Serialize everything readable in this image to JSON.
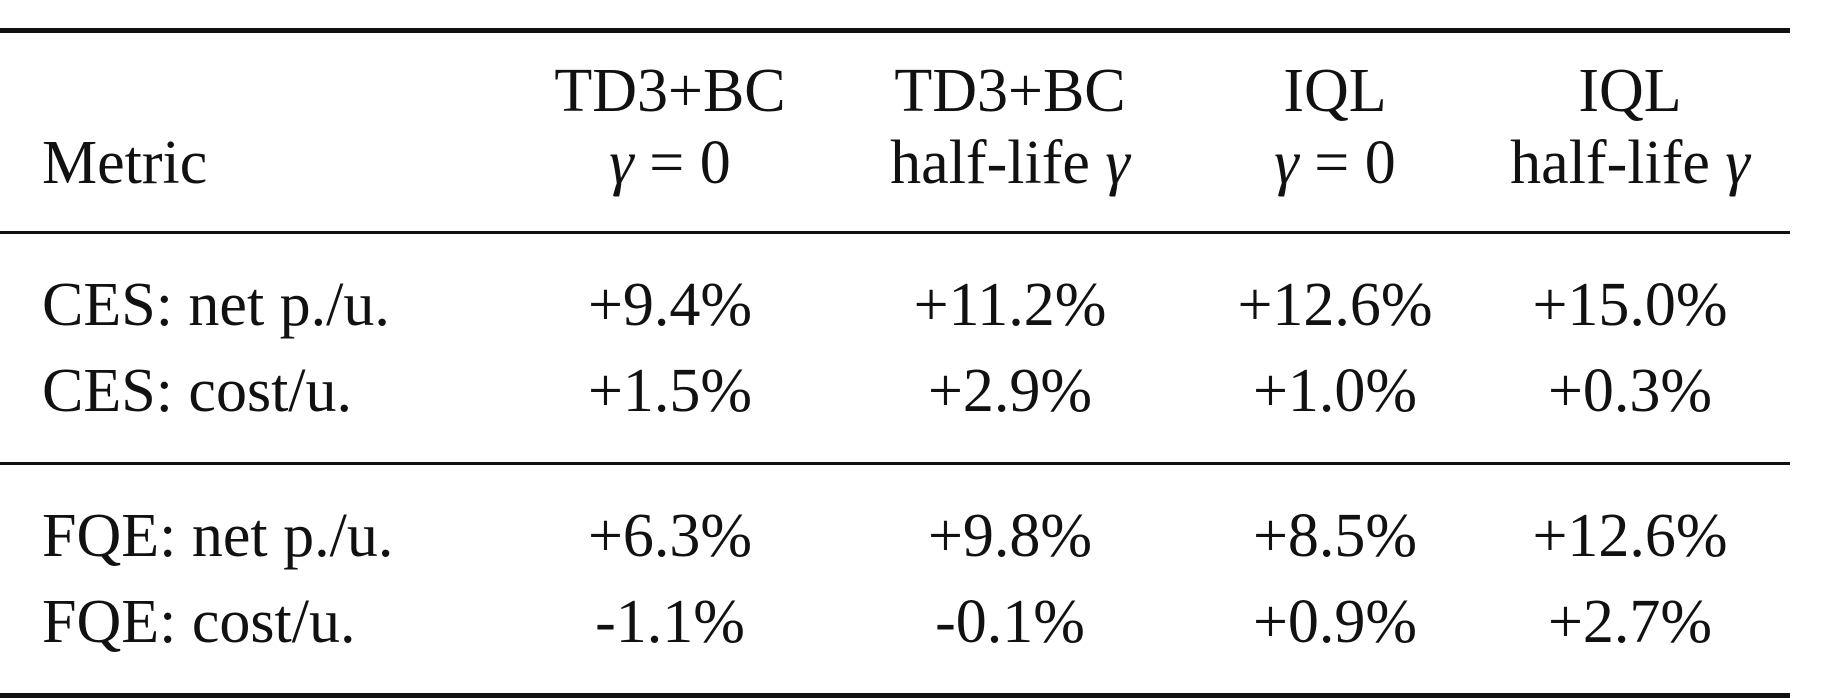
{
  "table": {
    "header": {
      "metric": "Metric",
      "columns": [
        {
          "line1": "TD3+BC",
          "line2": "γ = 0"
        },
        {
          "line1": "TD3+BC",
          "line2": "half-life γ"
        },
        {
          "line1": "IQL",
          "line2": "γ = 0"
        },
        {
          "line1": "IQL",
          "line2": "half-life γ"
        }
      ]
    },
    "groups": [
      {
        "rows": [
          {
            "metric": "CES: net p./u.",
            "values": [
              "+9.4%",
              "+11.2%",
              "+12.6%",
              "+15.0%"
            ]
          },
          {
            "metric": "CES: cost/u.",
            "values": [
              "+1.5%",
              "+2.9%",
              "+1.0%",
              "+0.3%"
            ]
          }
        ]
      },
      {
        "rows": [
          {
            "metric": "FQE: net p./u.",
            "values": [
              "+6.3%",
              "+9.8%",
              "+8.5%",
              "+12.6%"
            ]
          },
          {
            "metric": "FQE: cost/u.",
            "values": [
              "-1.1%",
              "-0.1%",
              "+0.9%",
              "+2.7%"
            ]
          }
        ]
      }
    ]
  }
}
